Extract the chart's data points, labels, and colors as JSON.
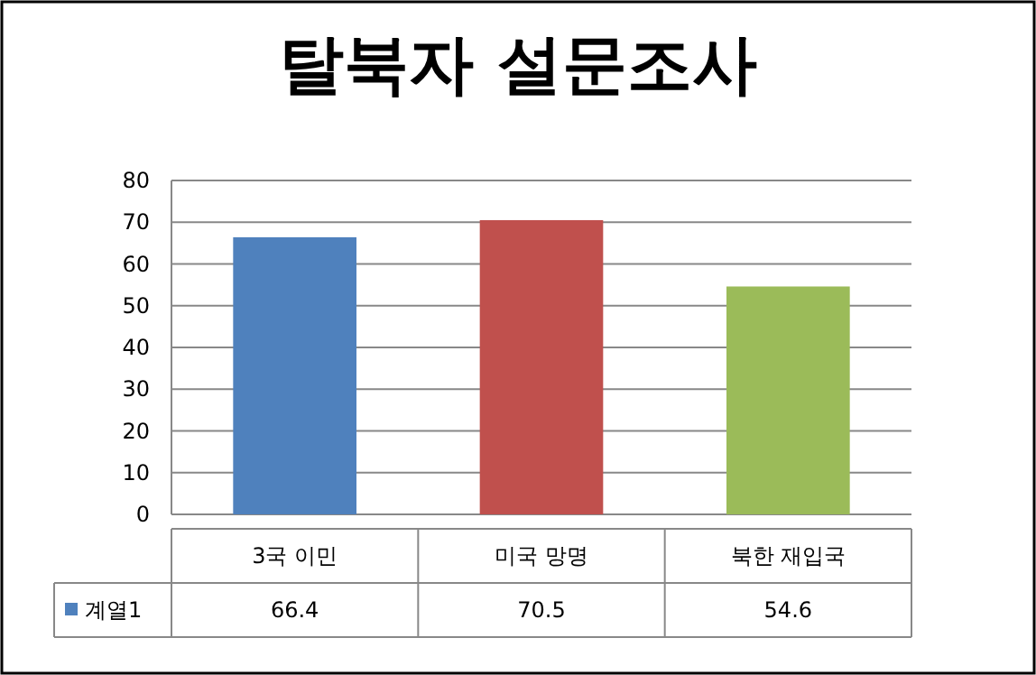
{
  "chart_data": {
    "type": "bar",
    "title": "탈북자 설문조사",
    "categories": [
      "3국 이민",
      "미국 망명",
      "북한 재입국"
    ],
    "series": [
      {
        "name": "계열1",
        "color": "#4f81bd",
        "colors": [
          "#4f81bd",
          "#c0504d",
          "#9bbb59"
        ],
        "values": [
          66.4,
          70.5,
          54.6
        ]
      }
    ],
    "ylim": [
      0,
      80
    ],
    "yticks": [
      0,
      10,
      20,
      30,
      40,
      50,
      60,
      70,
      80
    ],
    "grid": "y",
    "data_labels": true,
    "legend": "bottom"
  }
}
